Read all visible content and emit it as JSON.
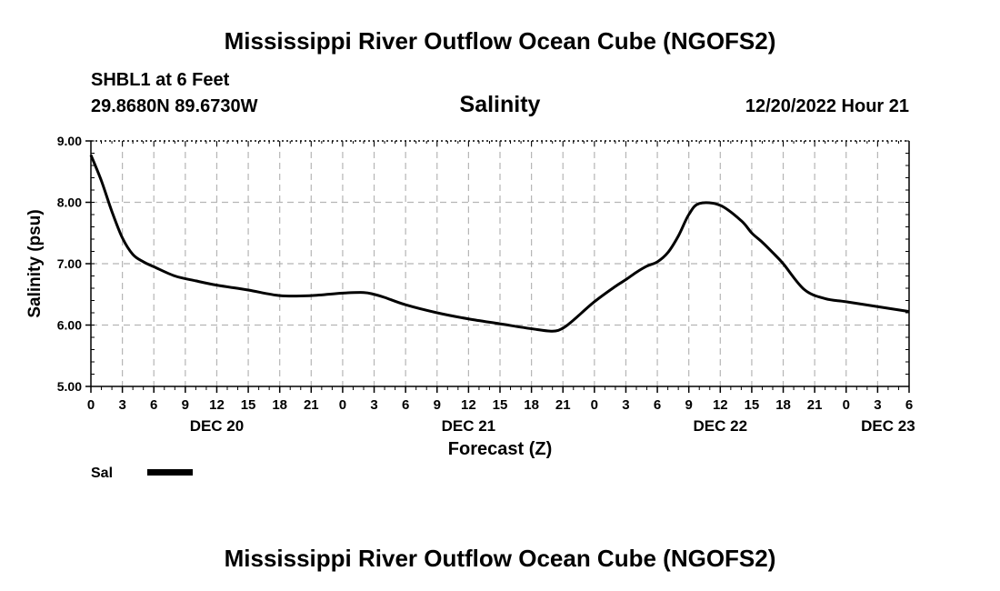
{
  "header": {
    "title": "Mississippi River Outflow Ocean Cube (NGOFS2)",
    "station": "SHBL1 at 6 Feet",
    "coords": "29.8680N  89.6730W",
    "subtitle": "Salinity",
    "datetime": "12/20/2022 Hour 21"
  },
  "footer": {
    "title": "Mississippi River Outflow Ocean Cube (NGOFS2)"
  },
  "chart_data": {
    "type": "line",
    "title": "Salinity",
    "xlabel": "Forecast (Z)",
    "ylabel": "Salinity (psu)",
    "xlim": [
      0,
      78
    ],
    "ylim": [
      5.0,
      9.0
    ],
    "grid": true,
    "y_ticks": [
      "5.00",
      "6.00",
      "7.00",
      "8.00",
      "9.00"
    ],
    "x_tick_labels": [
      "0",
      "3",
      "6",
      "9",
      "12",
      "15",
      "18",
      "21",
      "0",
      "3",
      "6",
      "9",
      "12",
      "15",
      "18",
      "21",
      "0",
      "3",
      "6",
      "9",
      "12",
      "15",
      "18",
      "21",
      "0",
      "3",
      "6"
    ],
    "day_labels": [
      {
        "label": "DEC 20",
        "hour": 12
      },
      {
        "label": "DEC 21",
        "hour": 36
      },
      {
        "label": "DEC 22",
        "hour": 60
      },
      {
        "label": "DEC 23",
        "hour": 76
      }
    ],
    "legend": {
      "label": "Sal",
      "position": "bottom-left"
    },
    "series": [
      {
        "name": "Sal",
        "x": [
          0,
          1,
          2,
          3,
          4,
          5,
          6,
          8,
          10,
          12,
          15,
          18,
          21,
          24,
          26,
          27,
          28,
          30,
          33,
          36,
          39,
          42,
          44,
          45,
          46,
          48,
          50,
          51,
          52,
          53,
          54,
          55,
          56,
          57,
          58,
          60,
          62,
          63,
          64,
          65,
          66,
          68,
          70,
          72,
          75,
          78
        ],
        "values": [
          8.77,
          8.35,
          7.85,
          7.42,
          7.15,
          7.03,
          6.95,
          6.8,
          6.72,
          6.65,
          6.57,
          6.48,
          6.48,
          6.52,
          6.53,
          6.5,
          6.45,
          6.33,
          6.2,
          6.1,
          6.02,
          5.94,
          5.9,
          5.95,
          6.08,
          6.38,
          6.63,
          6.74,
          6.86,
          6.96,
          7.03,
          7.18,
          7.45,
          7.8,
          7.98,
          7.95,
          7.7,
          7.5,
          7.35,
          7.18,
          7.0,
          6.58,
          6.43,
          6.38,
          6.3,
          6.22
        ]
      }
    ]
  }
}
